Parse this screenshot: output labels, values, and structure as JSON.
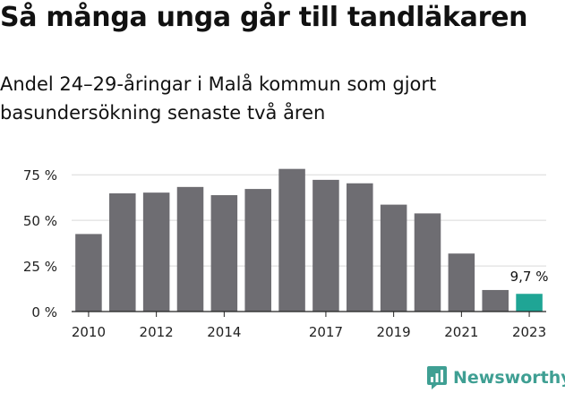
{
  "header": {
    "title": "Så många unga går till tandläkaren",
    "subtitle": "Andel 24–29-åringar i Malå kommun som gjort basundersökning senaste två åren"
  },
  "brand": {
    "name": "Newsworthy",
    "icon": "newsworthy-logo-icon",
    "color": "#3f9f93"
  },
  "chart_data": {
    "type": "bar",
    "x": [
      2010,
      2011,
      2012,
      2013,
      2014,
      2015,
      2016,
      2017,
      2018,
      2019,
      2020,
      2021,
      2022,
      2023
    ],
    "values": [
      42.5,
      64.8,
      65.2,
      68.3,
      63.8,
      67.2,
      78.2,
      72.2,
      70.3,
      58.6,
      53.8,
      31.8,
      11.8,
      9.7
    ],
    "x_tick_labels": [
      "2010",
      "2012",
      "2014",
      "2017",
      "2019",
      "2021",
      "2023"
    ],
    "x_tick_positions": [
      2010,
      2012,
      2014,
      2017,
      2019,
      2021,
      2023
    ],
    "y_ticks": [
      0,
      25,
      50,
      75
    ],
    "y_tick_labels": [
      "0 %",
      "25 %",
      "50 %",
      "75 %"
    ],
    "ylim": [
      0,
      80
    ],
    "grid": true,
    "annotation": {
      "x": 2023,
      "label": "9,7 %"
    },
    "colors": {
      "bar": "#6e6d72",
      "highlight": "#1fa595",
      "grid": "#d9d9d9",
      "axis": "#222222"
    },
    "xlabel": "",
    "ylabel": ""
  }
}
